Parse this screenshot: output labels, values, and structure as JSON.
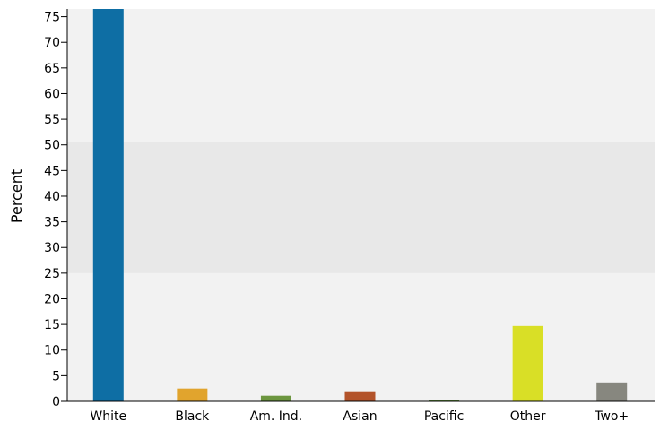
{
  "chart_data": {
    "type": "bar",
    "title": "",
    "xlabel": "",
    "ylabel": "Percent",
    "categories": [
      "White",
      "Black",
      "Am. Ind.",
      "Asian",
      "Pacific",
      "Other",
      "Two+"
    ],
    "values": [
      76.5,
      2.5,
      1.1,
      1.8,
      0.2,
      14.7,
      3.7
    ],
    "colors": [
      "#0e6ea4",
      "#e1a42d",
      "#6c963f",
      "#b3532a",
      "#5b8a3a",
      "#d9df26",
      "#87877f"
    ],
    "ylim": [
      0,
      76.5
    ],
    "yticks": [
      0,
      5,
      10,
      15,
      20,
      25,
      30,
      35,
      40,
      45,
      50,
      55,
      60,
      65,
      70,
      75
    ],
    "grid": false,
    "legend": "none",
    "background_bands": [
      {
        "from": 0,
        "to": 25,
        "color": "#f2f2f2"
      },
      {
        "from": 25,
        "to": 50.7,
        "color": "#e8e8e8"
      },
      {
        "from": 50.7,
        "to": 76.5,
        "color": "#f2f2f2"
      }
    ]
  }
}
